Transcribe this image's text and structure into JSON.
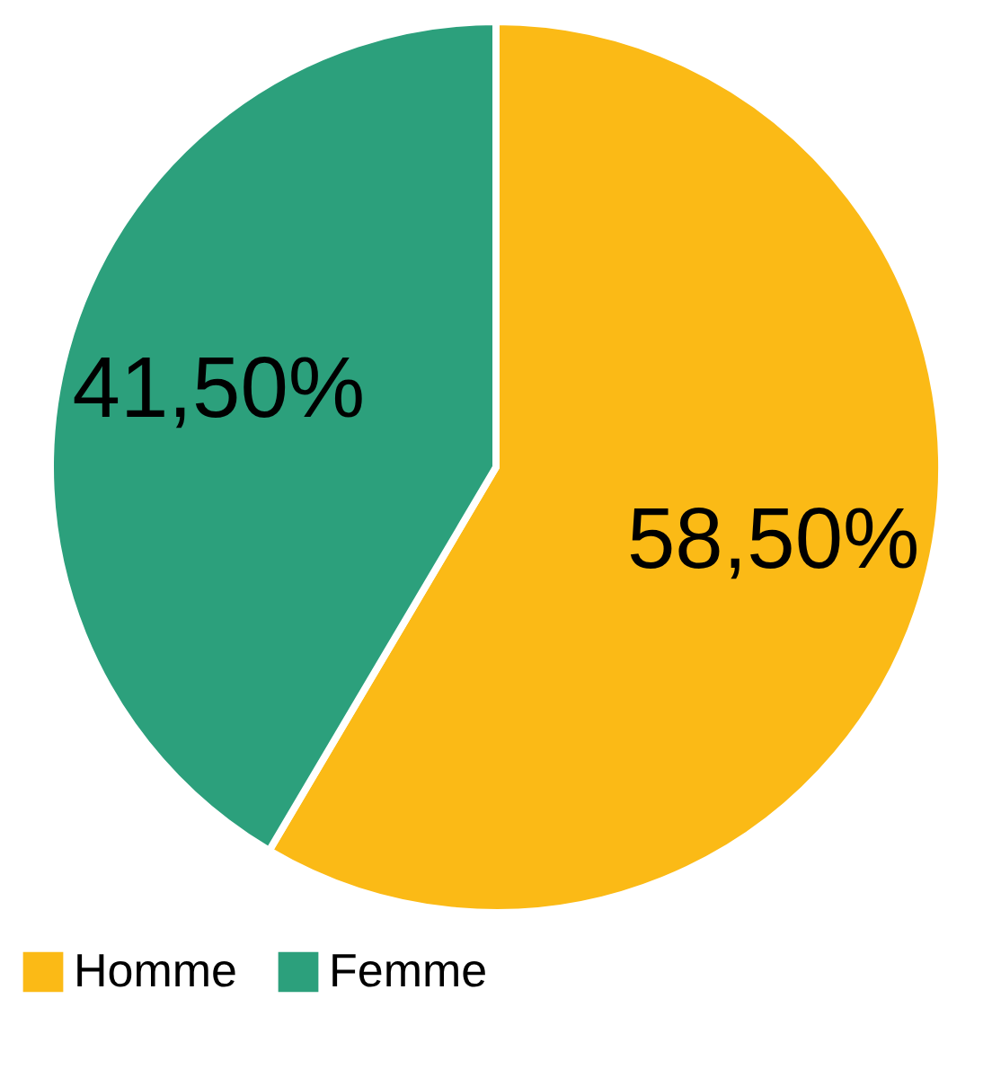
{
  "chart_data": {
    "type": "pie",
    "categories": [
      "Homme",
      "Femme"
    ],
    "values": [
      58.5,
      41.5
    ],
    "colors": [
      "#fbba16",
      "#2ca07c"
    ],
    "value_labels": [
      "58,50%",
      "41,50%"
    ],
    "legend": "bottom"
  }
}
